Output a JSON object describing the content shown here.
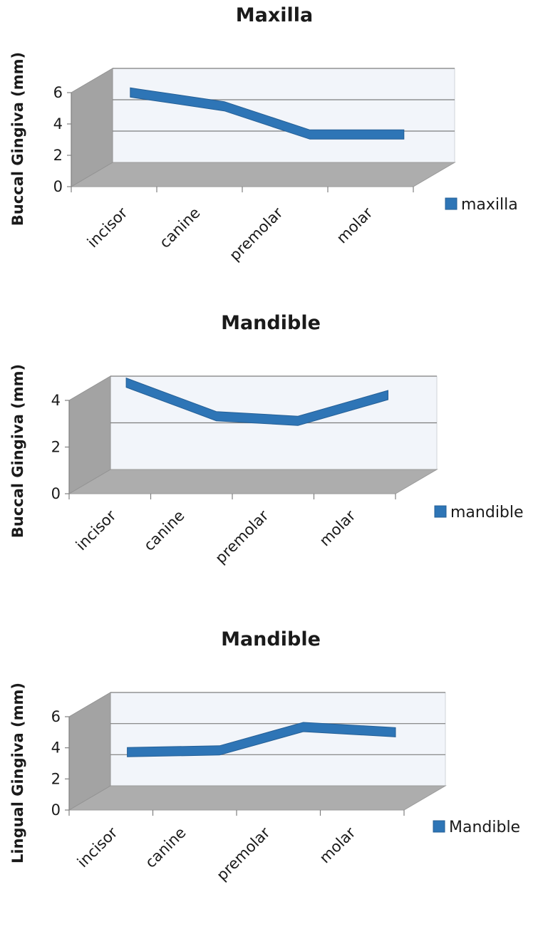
{
  "chart_data": [
    {
      "type": "line",
      "title": "Maxilla",
      "xlabel": "",
      "ylabel": "Buccal Gingiva (mm)",
      "categories": [
        "incisor",
        "canine",
        "premolar",
        "molar"
      ],
      "series": [
        {
          "name": "maxilla",
          "values": [
            5.0,
            4.2,
            2.4,
            2.4
          ]
        }
      ],
      "ylim": [
        0,
        6
      ],
      "yticks": [
        "0",
        "2",
        "4",
        "6"
      ],
      "grid": true,
      "legend_position": "right",
      "color": "#2e75b6"
    },
    {
      "type": "line",
      "title": "Mandible",
      "xlabel": "",
      "ylabel": "Buccal Gingiva (mm)",
      "categories": [
        "incisor",
        "canine",
        "premolar",
        "molar"
      ],
      "series": [
        {
          "name": "mandible",
          "values": [
            4.0,
            2.7,
            2.5,
            3.5
          ]
        }
      ],
      "ylim": [
        0,
        4
      ],
      "yticks": [
        "0",
        "2",
        "4"
      ],
      "grid": true,
      "legend_position": "right",
      "color": "#2e75b6"
    },
    {
      "type": "line",
      "title": "Mandible",
      "xlabel": "",
      "ylabel": "Lingual Gingiva (mm)",
      "categories": [
        "incisor",
        "canine",
        "premolar",
        "molar"
      ],
      "series": [
        {
          "name": "Mandible",
          "values": [
            2.8,
            2.9,
            4.4,
            4.1
          ]
        }
      ],
      "ylim": [
        0,
        6
      ],
      "yticks": [
        "0",
        "2",
        "4",
        "6"
      ],
      "grid": true,
      "legend_position": "right",
      "color": "#2e75b6"
    }
  ]
}
